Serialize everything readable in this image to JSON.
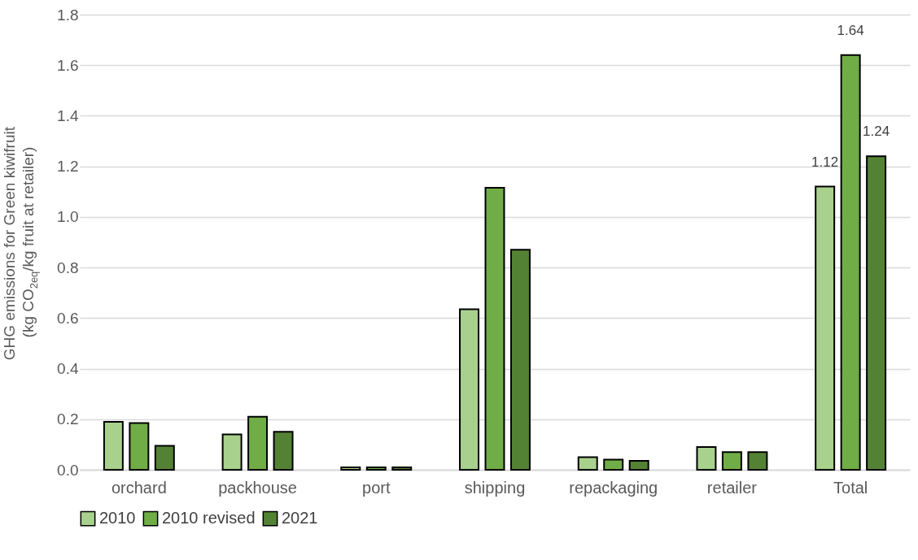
{
  "chart_data": {
    "type": "bar",
    "ylabel": "GHG emissions for Green kiwifruit\n(kg CO$_{2eq}$/kg fruit at retailer)",
    "categories": [
      "orchard",
      "packhouse",
      "port",
      "shipping",
      "repackaging",
      "retailer",
      "Total"
    ],
    "series": [
      {
        "name": "2010",
        "color": "#a9d18e",
        "values": [
          0.19,
          0.14,
          0.01,
          0.635,
          0.05,
          0.09,
          1.12
        ],
        "value_labels": [
          null,
          null,
          null,
          null,
          null,
          null,
          "1.12"
        ]
      },
      {
        "name": "2010 revised",
        "color": "#70ad47",
        "values": [
          0.185,
          0.21,
          0.01,
          1.115,
          0.04,
          0.07,
          1.64
        ],
        "value_labels": [
          null,
          null,
          null,
          null,
          null,
          null,
          "1.64"
        ]
      },
      {
        "name": "2021",
        "color": "#548235",
        "values": [
          0.095,
          0.15,
          0.01,
          0.87,
          0.035,
          0.07,
          1.24
        ],
        "value_labels": [
          null,
          null,
          null,
          null,
          null,
          null,
          "1.24"
        ]
      }
    ],
    "ylim": [
      0,
      1.8
    ],
    "yticks": [
      {
        "value": 0,
        "label": "0.0"
      },
      {
        "value": 0.2,
        "label": "0.2"
      },
      {
        "value": 0.4,
        "label": "0.4"
      },
      {
        "value": 0.6,
        "label": "0.6"
      },
      {
        "value": 0.8,
        "label": "0.8"
      },
      {
        "value": 1.0,
        "label": "1.0"
      },
      {
        "value": 1.2,
        "label": "1.2"
      },
      {
        "value": 1.4,
        "label": "1.4"
      },
      {
        "value": 1.6,
        "label": "1.6"
      },
      {
        "value": 1.8,
        "label": "1.8"
      }
    ],
    "grid": "y",
    "legend": "bottom"
  }
}
